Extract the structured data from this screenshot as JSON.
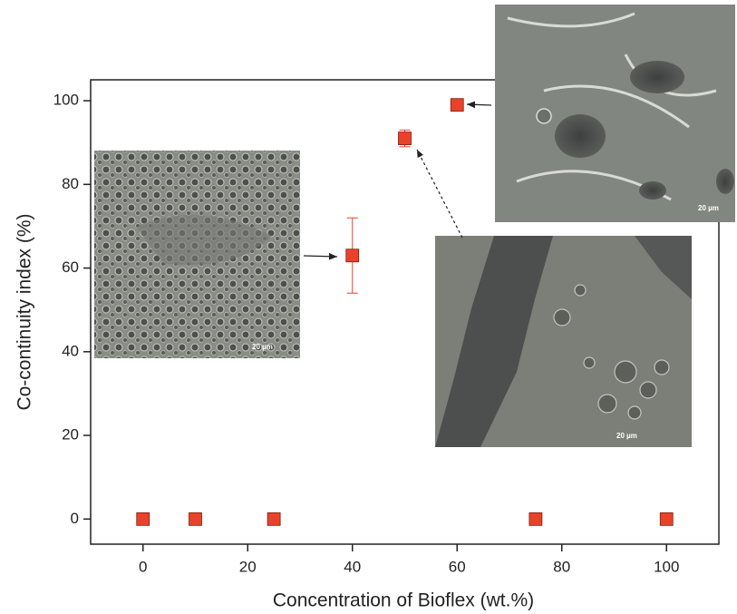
{
  "chart_data": {
    "type": "scatter",
    "x": [
      0,
      10,
      25,
      40,
      50,
      60,
      75,
      100
    ],
    "series": [
      {
        "color": "#e8432a",
        "values": [
          0,
          0,
          0,
          63,
          91,
          99,
          0,
          0
        ],
        "errors": [
          0,
          0,
          0,
          9,
          2,
          1,
          0,
          0
        ]
      }
    ],
    "xlabel": "Concentration of Bioflex (wt.%)",
    "ylabel": "Co-continuity index (%)",
    "xlim": [
      -10,
      110
    ],
    "xticks": [
      0,
      20,
      40,
      60,
      80,
      100
    ],
    "ylim": [
      -6,
      105
    ],
    "yticks": [
      0,
      20,
      40,
      60,
      80,
      100
    ],
    "annotations": [
      "20 µm",
      "20 µm",
      "20 µm"
    ]
  }
}
